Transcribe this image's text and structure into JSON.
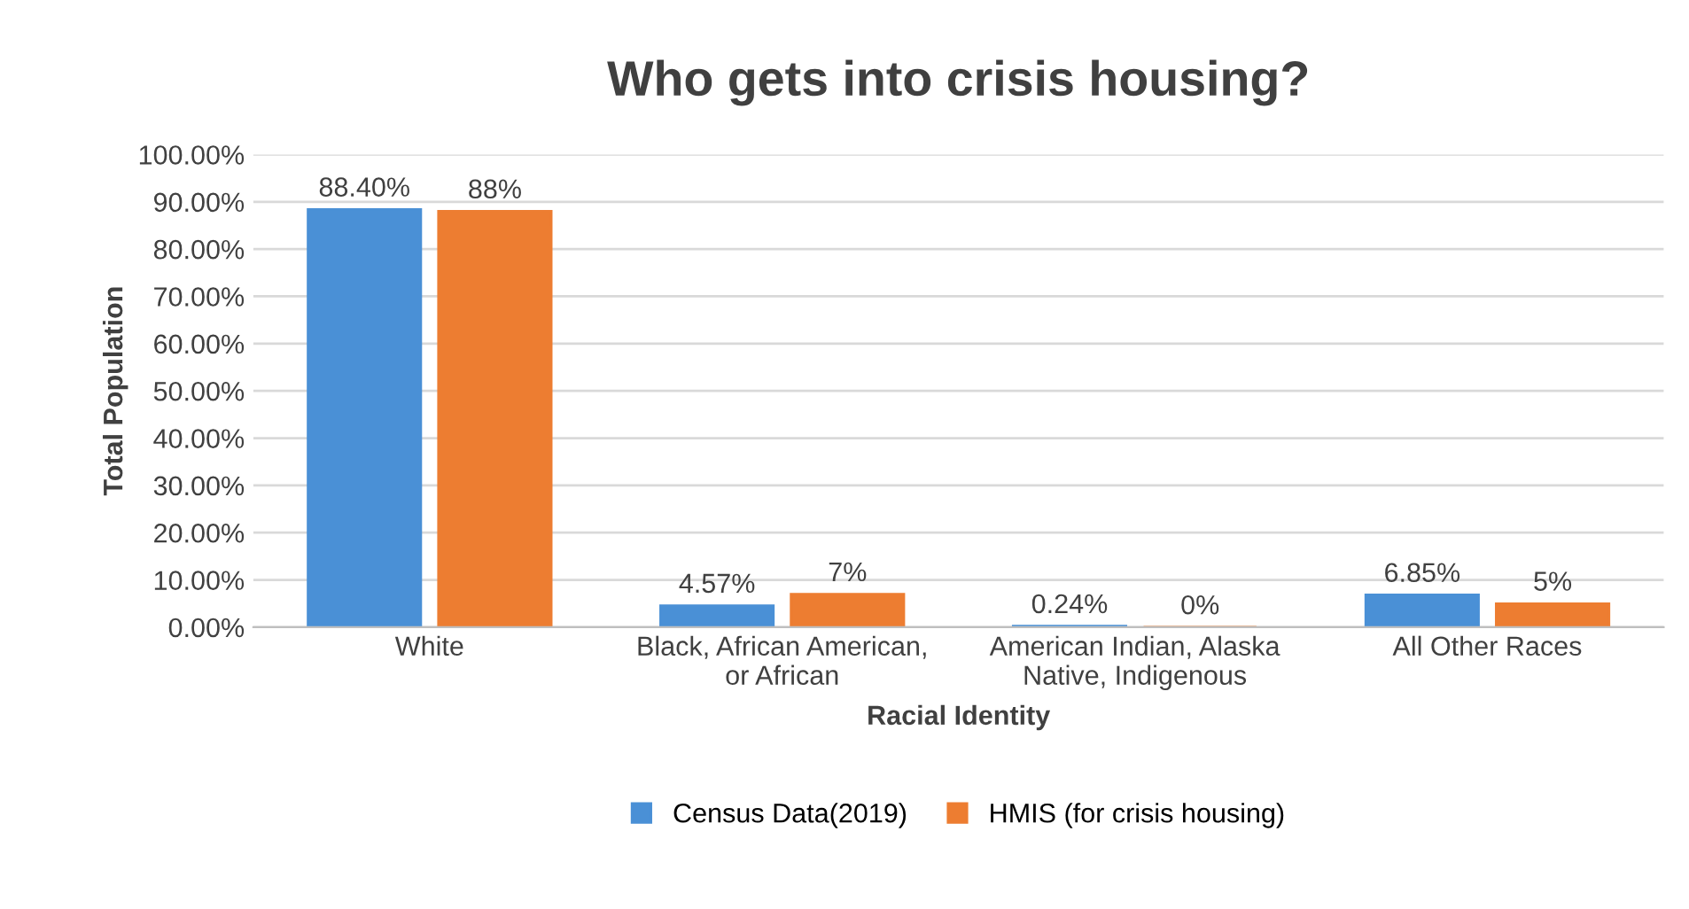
{
  "chart_data": {
    "type": "bar",
    "title": "Who gets into crisis housing?",
    "xlabel": "Racial Identity",
    "ylabel": "Total Population",
    "categories": [
      "White",
      "Black, African American,\nor African",
      "American Indian, Alaska\nNative, Indigenous",
      "All Other Races"
    ],
    "series": [
      {
        "name": "Census Data(2019)",
        "color": "#4a90d6",
        "values": [
          88.4,
          4.57,
          0.24,
          6.85
        ],
        "value_labels": [
          "88.40%",
          "4.57%",
          "0.24%",
          "6.85%"
        ]
      },
      {
        "name": "HMIS (for crisis housing)",
        "color": "#ed7d31",
        "values": [
          88,
          7,
          0,
          5
        ],
        "value_labels": [
          "88%",
          "7%",
          "0%",
          "5%"
        ]
      }
    ],
    "ylim": [
      0,
      100
    ],
    "yticks": [
      {
        "value": 0,
        "label": "0.00%"
      },
      {
        "value": 10,
        "label": "10.00%"
      },
      {
        "value": 20,
        "label": "20.00%"
      },
      {
        "value": 30,
        "label": "30.00%"
      },
      {
        "value": 40,
        "label": "40.00%"
      },
      {
        "value": 50,
        "label": "50.00%"
      },
      {
        "value": 60,
        "label": "60.00%"
      },
      {
        "value": 70,
        "label": "70.00%"
      },
      {
        "value": 80,
        "label": "80.00%"
      },
      {
        "value": 90,
        "label": "90.00%"
      },
      {
        "value": 100,
        "label": "100.00%"
      }
    ],
    "grid": "y",
    "legend": "bottom"
  }
}
